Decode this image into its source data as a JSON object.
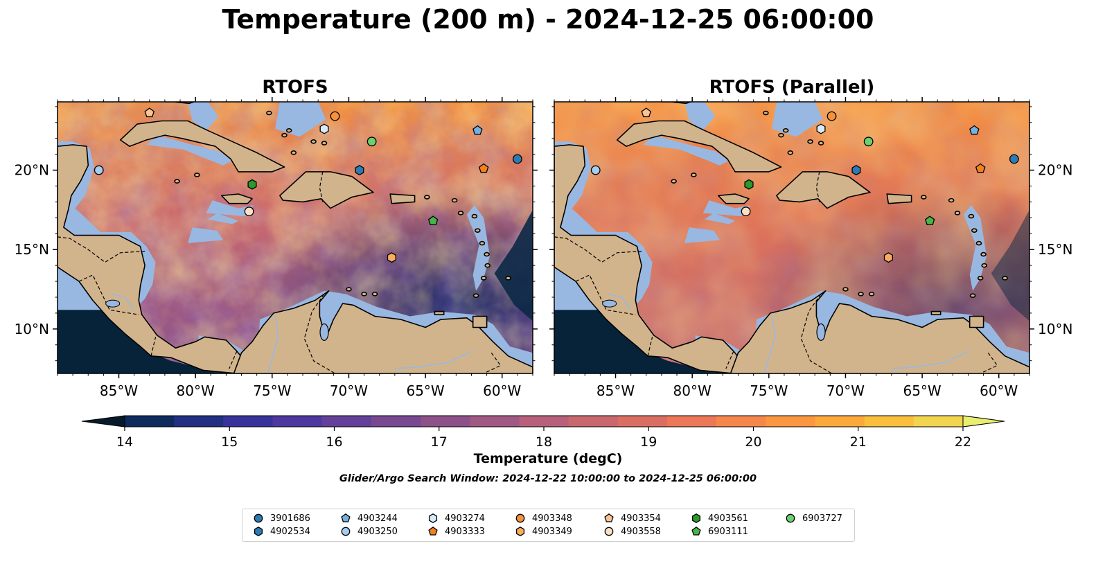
{
  "title": "Temperature (200 m) - 2024-12-25 06:00:00",
  "panels": [
    {
      "title": "RTOFS"
    },
    {
      "title": "RTOFS (Parallel)"
    }
  ],
  "axes": {
    "lon_ticks": [
      "85°W",
      "80°W",
      "75°W",
      "70°W",
      "65°W",
      "60°W"
    ],
    "lat_ticks": [
      "20°N",
      "15°N",
      "10°N"
    ],
    "lon_values": [
      -85,
      -80,
      -75,
      -70,
      -65,
      -60
    ],
    "lat_values": [
      20,
      15,
      10
    ],
    "lon_range": [
      -89,
      -58
    ],
    "lat_range": [
      7.2,
      24.3
    ]
  },
  "colorbar": {
    "label": "Temperature (degC)",
    "ticks": [
      "14",
      "15",
      "16",
      "17",
      "18",
      "19",
      "20",
      "21",
      "22"
    ],
    "min": 14,
    "max": 22,
    "step": 0.5,
    "extend": "both",
    "colors": [
      "#09223a",
      "#0f2a5c",
      "#232f80",
      "#38339a",
      "#4e399f",
      "#634199",
      "#784990",
      "#8c5188",
      "#a05983",
      "#b6607b",
      "#c9676f",
      "#db6e63",
      "#ec7859",
      "#f6874c",
      "#fb9740",
      "#fba93a",
      "#f9bf3d",
      "#f2d54f",
      "#eaee6f"
    ]
  },
  "search_window": "Glider/Argo Search Window: 2024-12-22 10:00:00 to 2024-12-25 06:00:00",
  "legend": [
    {
      "id": "3901686",
      "color": "#2c7bb6",
      "marker": "circle"
    },
    {
      "id": "4902534",
      "color": "#2c7bb6",
      "marker": "hexagon"
    },
    {
      "id": "4903244",
      "color": "#74b1e0",
      "marker": "pentagon"
    },
    {
      "id": "4903250",
      "color": "#a6cdee",
      "marker": "circle"
    },
    {
      "id": "4903274",
      "color": "#d8ebfb",
      "marker": "hexagon"
    },
    {
      "id": "4903333",
      "color": "#f0821e",
      "marker": "pentagon"
    },
    {
      "id": "4903348",
      "color": "#f5923a",
      "marker": "circle"
    },
    {
      "id": "4903349",
      "color": "#f8ac5f",
      "marker": "hexagon"
    },
    {
      "id": "4903354",
      "color": "#f9c394",
      "marker": "pentagon"
    },
    {
      "id": "4903558",
      "color": "#fde0c4",
      "marker": "circle"
    },
    {
      "id": "4903561",
      "color": "#2a9a2a",
      "marker": "hexagon"
    },
    {
      "id": "6903111",
      "color": "#47b547",
      "marker": "pentagon"
    },
    {
      "id": "6903727",
      "color": "#6fd06f",
      "marker": "circle"
    }
  ],
  "floats": [
    {
      "id": "4903354",
      "lon": -83.0,
      "lat": 23.6
    },
    {
      "id": "4903348",
      "lon": -70.9,
      "lat": 23.4
    },
    {
      "id": "4903274",
      "lon": -71.6,
      "lat": 22.6
    },
    {
      "id": "4903244",
      "lon": -61.6,
      "lat": 22.5
    },
    {
      "id": "6903727",
      "lon": -68.5,
      "lat": 21.8
    },
    {
      "id": "3901686",
      "lon": -59.0,
      "lat": 20.7
    },
    {
      "id": "4903250",
      "lon": -86.3,
      "lat": 20.0
    },
    {
      "id": "4902534",
      "lon": -69.3,
      "lat": 20.0
    },
    {
      "id": "4903333",
      "lon": -61.2,
      "lat": 20.1
    },
    {
      "id": "4903561",
      "lon": -76.3,
      "lat": 19.1
    },
    {
      "id": "4903558",
      "lon": -76.5,
      "lat": 17.4
    },
    {
      "id": "6903111",
      "lon": -64.5,
      "lat": 16.8
    },
    {
      "id": "4903349",
      "lon": -67.2,
      "lat": 14.5
    }
  ]
}
